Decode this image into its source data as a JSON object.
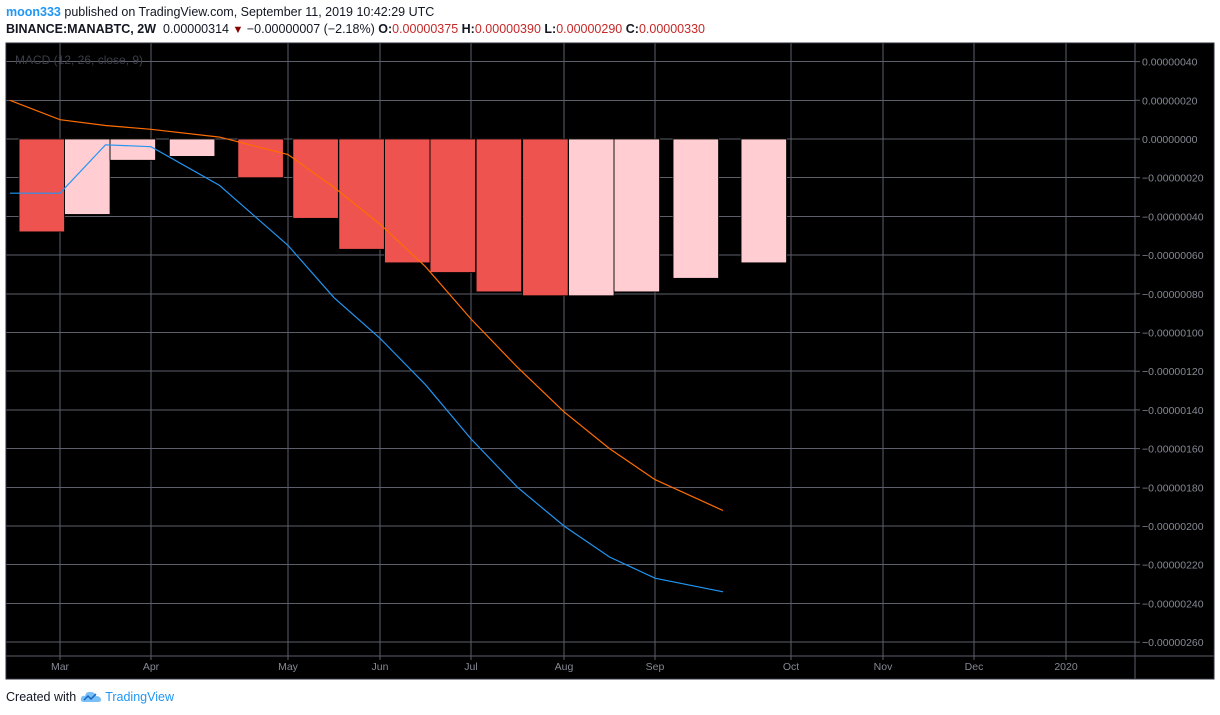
{
  "header": {
    "author": "moon333",
    "published_text": "published on TradingView.com, September 11, 2019 10:42:29 UTC",
    "symbol": "BINANCE:MANABTC, 2W",
    "last_price": "0.00000314",
    "change": "−0.00000007 (−2.18%)",
    "o_label": "O:",
    "o_value": "0.00000375",
    "h_label": "H:",
    "h_value": "0.00000390",
    "l_label": "L:",
    "l_value": "0.00000290",
    "c_label": "C:",
    "c_value": "0.00000330"
  },
  "footer": {
    "created_with": "Created with",
    "brand": "TradingView",
    "logo_icon": "tradingview-cloud-logo-icon"
  },
  "colors": {
    "background": "#000000",
    "grid": "#5d606b",
    "hist_strong": "#ef5350",
    "hist_light": "#ffcdd2",
    "macd_line": "#2196f3",
    "signal_line": "#ff6d00",
    "axis_text": "#868993",
    "brand": "#2196f3"
  },
  "chart_data": {
    "type": "bar",
    "indicator_label": "MACD (12, 26, close, 9)",
    "x_labels": [
      "Mar",
      "Apr",
      "May",
      "Jun",
      "Jul",
      "Aug",
      "Sep",
      "Oct",
      "Nov",
      "Dec",
      "2020"
    ],
    "y_tick_labels": [
      "0.00000040",
      "0.00000020",
      "0.00000000",
      "−0.00000020",
      "−0.00000040",
      "−0.00000060",
      "−0.00000080",
      "−0.00000100",
      "−0.00000120",
      "−0.00000140",
      "−0.00000160",
      "−0.00000180",
      "−0.00000200",
      "−0.00000220",
      "−0.00000240",
      "−0.00000260"
    ],
    "y_ticks": [
      0.4,
      0.2,
      0,
      -0.2,
      -0.4,
      -0.6,
      -0.8,
      -1.0,
      -1.2,
      -1.4,
      -1.6,
      -1.8,
      -2.0,
      -2.2,
      -2.4,
      -2.6
    ],
    "y_unit_note": "values in units of 1e-6 BTC",
    "ylim": [
      -2.6,
      0.4
    ],
    "grid": true,
    "histogram": [
      {
        "t": -0.2,
        "v": -0.48,
        "style": "strong"
      },
      {
        "t": 0.3,
        "v": -0.39,
        "style": "light"
      },
      {
        "t": 0.8,
        "v": -0.11,
        "style": "light"
      },
      {
        "t": 1.3,
        "v": -0.09,
        "style": "light"
      },
      {
        "t": 1.8,
        "v": -0.2,
        "style": "strong"
      },
      {
        "t": 2.3,
        "v": -0.41,
        "style": "strong"
      },
      {
        "t": 2.8,
        "v": -0.57,
        "style": "strong"
      },
      {
        "t": 3.3,
        "v": -0.64,
        "style": "strong"
      },
      {
        "t": 3.8,
        "v": -0.69,
        "style": "strong"
      },
      {
        "t": 4.3,
        "v": -0.79,
        "style": "strong"
      },
      {
        "t": 4.8,
        "v": -0.81,
        "style": "strong"
      },
      {
        "t": 5.3,
        "v": -0.81,
        "style": "light"
      },
      {
        "t": 5.8,
        "v": -0.79,
        "style": "light"
      },
      {
        "t": 6.3,
        "v": -0.72,
        "style": "light"
      },
      {
        "t": 6.8,
        "v": -0.64,
        "style": "light"
      }
    ],
    "series": [
      {
        "name": "MACD",
        "points": [
          [
            -0.55,
            -0.28
          ],
          [
            0.0,
            -0.28
          ],
          [
            0.5,
            -0.03
          ],
          [
            1.0,
            -0.04
          ],
          [
            1.5,
            -0.24
          ],
          [
            2.0,
            -0.55
          ],
          [
            2.5,
            -0.82
          ],
          [
            3.0,
            -1.03
          ],
          [
            3.5,
            -1.27
          ],
          [
            4.0,
            -1.55
          ],
          [
            4.5,
            -1.8
          ],
          [
            5.0,
            -2.0
          ],
          [
            5.5,
            -2.16
          ],
          [
            6.0,
            -2.27
          ],
          [
            6.5,
            -2.34
          ]
        ]
      },
      {
        "name": "Signal",
        "points": [
          [
            -0.55,
            0.2
          ],
          [
            0.0,
            0.1
          ],
          [
            0.5,
            0.07
          ],
          [
            1.0,
            0.05
          ],
          [
            1.5,
            0.01
          ],
          [
            2.0,
            -0.08
          ],
          [
            2.5,
            -0.25
          ],
          [
            3.0,
            -0.44
          ],
          [
            3.5,
            -0.66
          ],
          [
            4.0,
            -0.93
          ],
          [
            4.5,
            -1.18
          ],
          [
            5.0,
            -1.41
          ],
          [
            5.5,
            -1.6
          ],
          [
            6.0,
            -1.76
          ],
          [
            6.5,
            -1.92
          ]
        ]
      }
    ]
  }
}
